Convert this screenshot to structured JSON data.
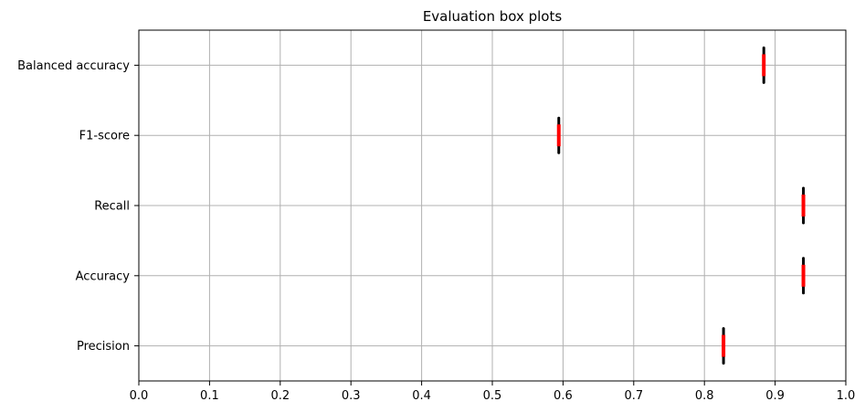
{
  "chart_data": {
    "type": "box",
    "title": "Evaluation box plots",
    "orientation": "horizontal",
    "xlabel": "",
    "ylabel": "",
    "xlim": [
      0.0,
      1.0
    ],
    "xticks": [
      "0.0",
      "0.1",
      "0.2",
      "0.3",
      "0.4",
      "0.5",
      "0.6",
      "0.7",
      "0.8",
      "0.9",
      "1.0"
    ],
    "grid": true,
    "categories": [
      "Precision",
      "Accuracy",
      "Recall",
      "F1-score",
      "Balanced accuracy"
    ],
    "medians": [
      0.827,
      0.94,
      0.94,
      0.594,
      0.884
    ],
    "colors": {
      "median": "#ff0000",
      "box": "#000000",
      "grid": "#b0b0b0"
    }
  }
}
